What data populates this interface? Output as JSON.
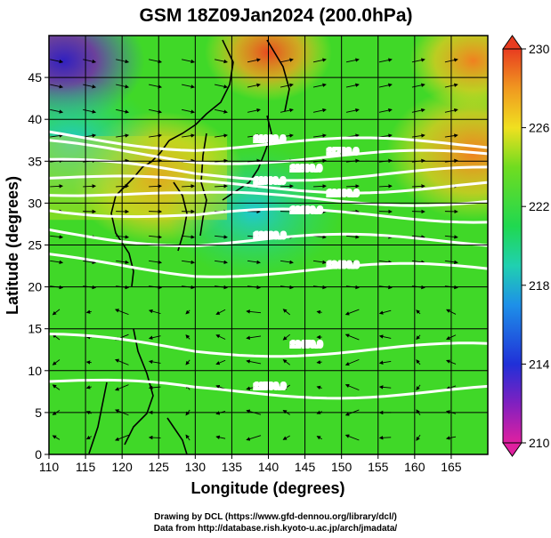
{
  "chart_data": {
    "type": "heatmap",
    "title": "GSM 18Z09Jan2024 (200.0hPa)",
    "xlabel": "Longitude (degrees)",
    "ylabel": "Latitude  (degrees)",
    "xlim": [
      110,
      170
    ],
    "ylim": [
      0,
      50
    ],
    "xticks": [
      110,
      115,
      120,
      125,
      130,
      135,
      140,
      145,
      150,
      155,
      160,
      165
    ],
    "yticks": [
      0,
      5,
      10,
      15,
      20,
      25,
      30,
      35,
      40,
      45
    ],
    "grid": true,
    "colorbar": {
      "ticks": [
        210,
        214,
        218,
        222,
        226,
        230
      ],
      "range": [
        210,
        230
      ],
      "colors": [
        "#e0208a",
        "#7020c0",
        "#2030d8",
        "#1e7ae8",
        "#20c8d0",
        "#20d880",
        "#28d028",
        "#88e020",
        "#f0e020",
        "#f0a020",
        "#e85020"
      ]
    },
    "contours": [
      {
        "label": "12500.0",
        "lat": 7.5
      },
      {
        "label": "12450.0",
        "lat": 12.5
      },
      {
        "label": "12400.0",
        "lat": 22.0
      },
      {
        "label": "12200.0",
        "lat": 25.5
      },
      {
        "label": "12100.0",
        "lat": 28.5
      },
      {
        "label": "12000.0",
        "lat": 30.5
      },
      {
        "label": "11900.0",
        "lat": 32.0
      },
      {
        "label": "11800.0",
        "lat": 33.5
      },
      {
        "label": "11700.0",
        "lat": 35.5
      },
      {
        "label": "11600.0",
        "lat": 37.0
      }
    ],
    "hot_spots": [
      {
        "lon": 140,
        "lat": 48,
        "value": 227
      },
      {
        "lon": 168,
        "lat": 47,
        "value": 226
      },
      {
        "lon": 168,
        "lat": 36,
        "value": 225
      },
      {
        "lon": 125,
        "lat": 33,
        "value": 225
      },
      {
        "lon": 112,
        "lat": 47,
        "value": 212
      },
      {
        "lon": 113,
        "lat": 37,
        "value": 219
      },
      {
        "lon": 138,
        "lat": 29,
        "value": 220
      }
    ]
  },
  "credits": {
    "line1": "Drawing by DCL (https://www.gfd-dennou.org/library/dcl/)",
    "line2": "Data from http://database.rish.kyoto-u.ac.jp/arch/jmadata/"
  }
}
